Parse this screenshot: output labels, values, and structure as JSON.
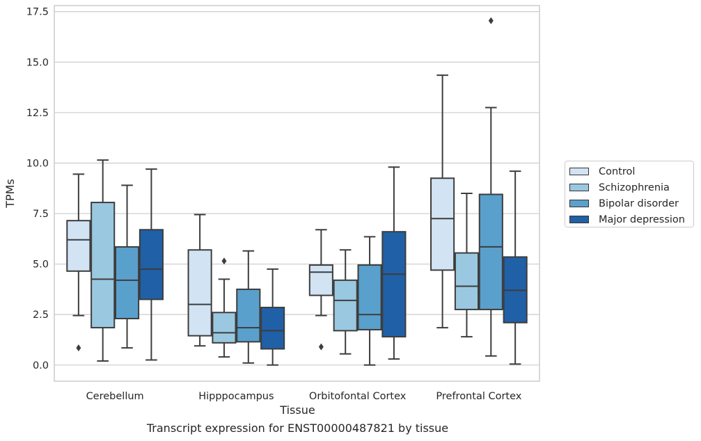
{
  "caption": "Transcript expression for ENST00000487821 by tissue",
  "chart_data": {
    "type": "box",
    "xlabel": "Tissue",
    "ylabel": "TPMs",
    "ylim": [
      -0.8,
      17.8
    ],
    "yticks": [
      0.0,
      2.5,
      5.0,
      7.5,
      10.0,
      12.5,
      15.0,
      17.5
    ],
    "ytick_labels": [
      "0.0",
      "2.5",
      "5.0",
      "7.5",
      "10.0",
      "12.5",
      "15.0",
      "17.5"
    ],
    "grid": "horizontal",
    "legend_position": "right",
    "categories": [
      "Cerebellum",
      "Hipppocampus",
      "Orbitofontal Cortex",
      "Prefrontal Cortex"
    ],
    "series": [
      {
        "name": "Control",
        "color": "#d2e3f3",
        "boxes": [
          {
            "whislo": 2.45,
            "q1": 4.65,
            "med": 6.2,
            "q3": 7.15,
            "whishi": 9.45,
            "fliers": [
              0.85
            ]
          },
          {
            "whislo": 0.95,
            "q1": 1.45,
            "med": 3.0,
            "q3": 5.7,
            "whishi": 7.45,
            "fliers": []
          },
          {
            "whislo": 2.45,
            "q1": 3.45,
            "med": 4.6,
            "q3": 4.95,
            "whishi": 6.7,
            "fliers": [
              0.9
            ]
          },
          {
            "whislo": 1.85,
            "q1": 4.7,
            "med": 7.25,
            "q3": 9.25,
            "whishi": 14.35,
            "fliers": []
          }
        ]
      },
      {
        "name": "Schizophrenia",
        "color": "#9ac8e0",
        "boxes": [
          {
            "whislo": 0.2,
            "q1": 1.85,
            "med": 4.25,
            "q3": 8.05,
            "whishi": 10.15,
            "fliers": []
          },
          {
            "whislo": 0.4,
            "q1": 1.1,
            "med": 1.6,
            "q3": 2.6,
            "whishi": 4.25,
            "fliers": [
              5.15
            ]
          },
          {
            "whislo": 0.55,
            "q1": 1.7,
            "med": 3.2,
            "q3": 4.2,
            "whishi": 5.7,
            "fliers": []
          },
          {
            "whislo": 1.4,
            "q1": 2.75,
            "med": 3.9,
            "q3": 5.55,
            "whishi": 8.5,
            "fliers": []
          }
        ]
      },
      {
        "name": "Bipolar disorder",
        "color": "#5aa0cd",
        "boxes": [
          {
            "whislo": 0.85,
            "q1": 2.3,
            "med": 4.2,
            "q3": 5.85,
            "whishi": 8.9,
            "fliers": []
          },
          {
            "whislo": 0.1,
            "q1": 1.15,
            "med": 1.85,
            "q3": 3.75,
            "whishi": 5.65,
            "fliers": []
          },
          {
            "whislo": 0.0,
            "q1": 1.75,
            "med": 2.5,
            "q3": 4.95,
            "whishi": 6.35,
            "fliers": []
          },
          {
            "whislo": 0.45,
            "q1": 2.75,
            "med": 5.85,
            "q3": 8.45,
            "whishi": 12.75,
            "fliers": [
              17.05
            ]
          }
        ]
      },
      {
        "name": "Major depression",
        "color": "#2060a7",
        "boxes": [
          {
            "whislo": 0.25,
            "q1": 3.25,
            "med": 4.75,
            "q3": 6.7,
            "whishi": 9.7,
            "fliers": []
          },
          {
            "whislo": 0.0,
            "q1": 0.8,
            "med": 1.7,
            "q3": 2.85,
            "whishi": 4.75,
            "fliers": []
          },
          {
            "whislo": 0.3,
            "q1": 1.4,
            "med": 4.5,
            "q3": 6.6,
            "whishi": 9.8,
            "fliers": []
          },
          {
            "whislo": 0.05,
            "q1": 2.1,
            "med": 3.7,
            "q3": 5.35,
            "whishi": 9.6,
            "fliers": []
          }
        ]
      }
    ]
  }
}
